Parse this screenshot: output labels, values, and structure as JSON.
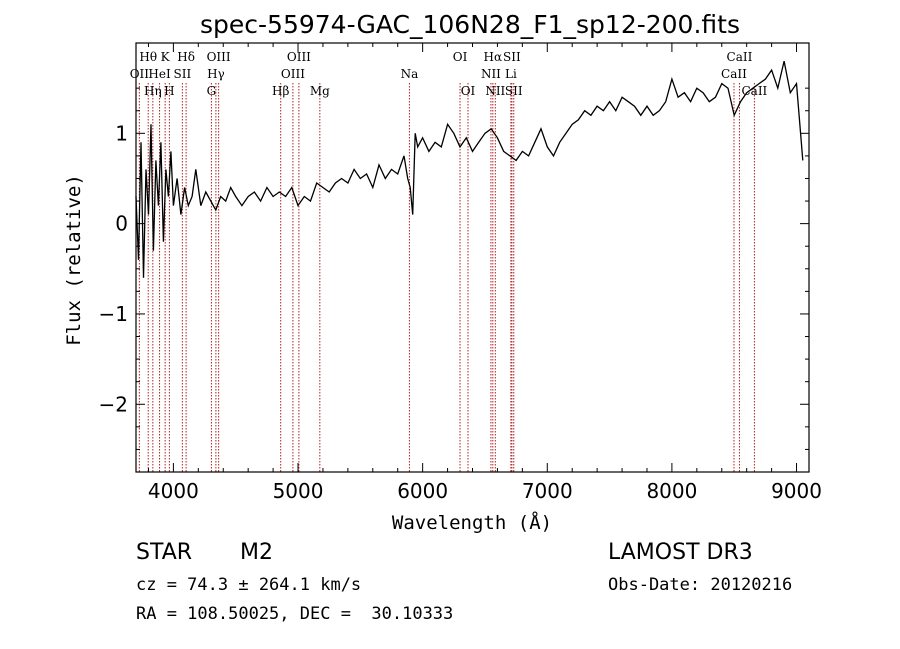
{
  "chart_data": {
    "type": "line",
    "title": "spec-55974-GAC_106N28_F1_sp12-200.fits",
    "xlabel": "Wavelength (Å)",
    "ylabel": "Flux (relative)",
    "xlim": [
      3700,
      9100
    ],
    "ylim": [
      -2.75,
      2.0
    ],
    "xticks": [
      4000,
      5000,
      6000,
      7000,
      8000,
      9000
    ],
    "yticks": [
      -2,
      -1,
      0,
      1
    ],
    "series": [
      {
        "name": "spectrum",
        "x": [
          3700,
          3720,
          3740,
          3760,
          3780,
          3800,
          3820,
          3840,
          3860,
          3880,
          3900,
          3920,
          3940,
          3960,
          3980,
          4000,
          4030,
          4060,
          4090,
          4120,
          4150,
          4180,
          4220,
          4260,
          4300,
          4340,
          4380,
          4420,
          4460,
          4500,
          4550,
          4600,
          4650,
          4700,
          4750,
          4800,
          4850,
          4900,
          4950,
          5000,
          5050,
          5100,
          5150,
          5200,
          5250,
          5300,
          5350,
          5400,
          5450,
          5500,
          5550,
          5600,
          5650,
          5700,
          5750,
          5800,
          5850,
          5880,
          5900,
          5920,
          5940,
          5960,
          6000,
          6050,
          6100,
          6150,
          6200,
          6250,
          6300,
          6350,
          6400,
          6450,
          6500,
          6550,
          6600,
          6650,
          6700,
          6750,
          6800,
          6850,
          6900,
          6950,
          7000,
          7050,
          7100,
          7150,
          7200,
          7250,
          7300,
          7350,
          7400,
          7450,
          7500,
          7550,
          7600,
          7650,
          7700,
          7750,
          7800,
          7850,
          7900,
          7950,
          8000,
          8050,
          8100,
          8150,
          8200,
          8250,
          8300,
          8350,
          8400,
          8450,
          8500,
          8550,
          8600,
          8650,
          8700,
          8750,
          8800,
          8850,
          8900,
          8950,
          9000,
          9050
        ],
        "y": [
          0.3,
          -0.4,
          0.9,
          -0.6,
          0.6,
          0.1,
          1.1,
          -0.3,
          0.7,
          0.2,
          0.9,
          -0.2,
          0.6,
          0.3,
          0.8,
          0.2,
          0.5,
          0.1,
          0.4,
          0.2,
          0.3,
          0.6,
          0.2,
          0.35,
          0.25,
          0.15,
          0.3,
          0.25,
          0.4,
          0.3,
          0.2,
          0.3,
          0.35,
          0.25,
          0.4,
          0.3,
          0.35,
          0.3,
          0.4,
          0.2,
          0.3,
          0.25,
          0.45,
          0.4,
          0.35,
          0.45,
          0.5,
          0.45,
          0.6,
          0.5,
          0.55,
          0.4,
          0.65,
          0.5,
          0.6,
          0.55,
          0.75,
          0.5,
          0.4,
          0.1,
          1.0,
          0.85,
          0.95,
          0.8,
          0.9,
          0.85,
          1.1,
          1.0,
          0.85,
          0.95,
          0.8,
          0.9,
          1.0,
          1.05,
          0.95,
          0.8,
          0.75,
          0.7,
          0.8,
          0.75,
          0.9,
          1.05,
          0.85,
          0.75,
          0.9,
          1.0,
          1.1,
          1.15,
          1.25,
          1.2,
          1.3,
          1.25,
          1.35,
          1.25,
          1.4,
          1.35,
          1.3,
          1.2,
          1.3,
          1.2,
          1.25,
          1.35,
          1.6,
          1.4,
          1.45,
          1.35,
          1.5,
          1.45,
          1.35,
          1.4,
          1.55,
          1.5,
          1.2,
          1.35,
          1.45,
          1.5,
          1.55,
          1.6,
          1.7,
          1.5,
          1.8,
          1.45,
          1.55,
          0.7
        ]
      }
    ],
    "line_markers": [
      {
        "name": "OII",
        "wl": 3727,
        "row": 2
      },
      {
        "name": "Hθ",
        "wl": 3798,
        "row": 1
      },
      {
        "name": "Hη",
        "wl": 3835,
        "row": 3
      },
      {
        "name": "HeI",
        "wl": 3889,
        "row": 2
      },
      {
        "name": "K",
        "wl": 3934,
        "row": 1
      },
      {
        "name": "H",
        "wl": 3968,
        "row": 3
      },
      {
        "name": "SII",
        "wl": 4072,
        "row": 2
      },
      {
        "name": "Hδ",
        "wl": 4102,
        "row": 1
      },
      {
        "name": "G",
        "wl": 4305,
        "row": 3
      },
      {
        "name": "Hγ",
        "wl": 4341,
        "row": 2
      },
      {
        "name": "OIII",
        "wl": 4363,
        "row": 1
      },
      {
        "name": "Hβ",
        "wl": 4861,
        "row": 3
      },
      {
        "name": "OIII",
        "wl": 4959,
        "row": 2
      },
      {
        "name": "OIII",
        "wl": 5007,
        "row": 1
      },
      {
        "name": "Mg",
        "wl": 5175,
        "row": 3
      },
      {
        "name": "Na",
        "wl": 5894,
        "row": 2
      },
      {
        "name": "OI",
        "wl": 6300,
        "row": 1
      },
      {
        "name": "OI",
        "wl": 6364,
        "row": 3
      },
      {
        "name": "NII",
        "wl": 6548,
        "row": 2
      },
      {
        "name": "Hα",
        "wl": 6563,
        "row": 1
      },
      {
        "name": "NII",
        "wl": 6583,
        "row": 3
      },
      {
        "name": "Li",
        "wl": 6708,
        "row": 2
      },
      {
        "name": "SII",
        "wl": 6716,
        "row": 1
      },
      {
        "name": "SII",
        "wl": 6731,
        "row": 3
      },
      {
        "name": "CaII",
        "wl": 8498,
        "row": 2
      },
      {
        "name": "CaII",
        "wl": 8542,
        "row": 1
      },
      {
        "name": "CaII",
        "wl": 8662,
        "row": 3
      }
    ]
  },
  "info": {
    "class": "STAR",
    "subclass": "M2",
    "survey": "LAMOST DR3",
    "cz": "cz = 74.3 ± 264.1 km/s",
    "obs_date": "Obs-Date: 20120216",
    "radec": "RA = 108.50025, DEC =  30.10333"
  },
  "colors": {
    "marker_line": "#b22222",
    "spectrum": "#000000"
  }
}
